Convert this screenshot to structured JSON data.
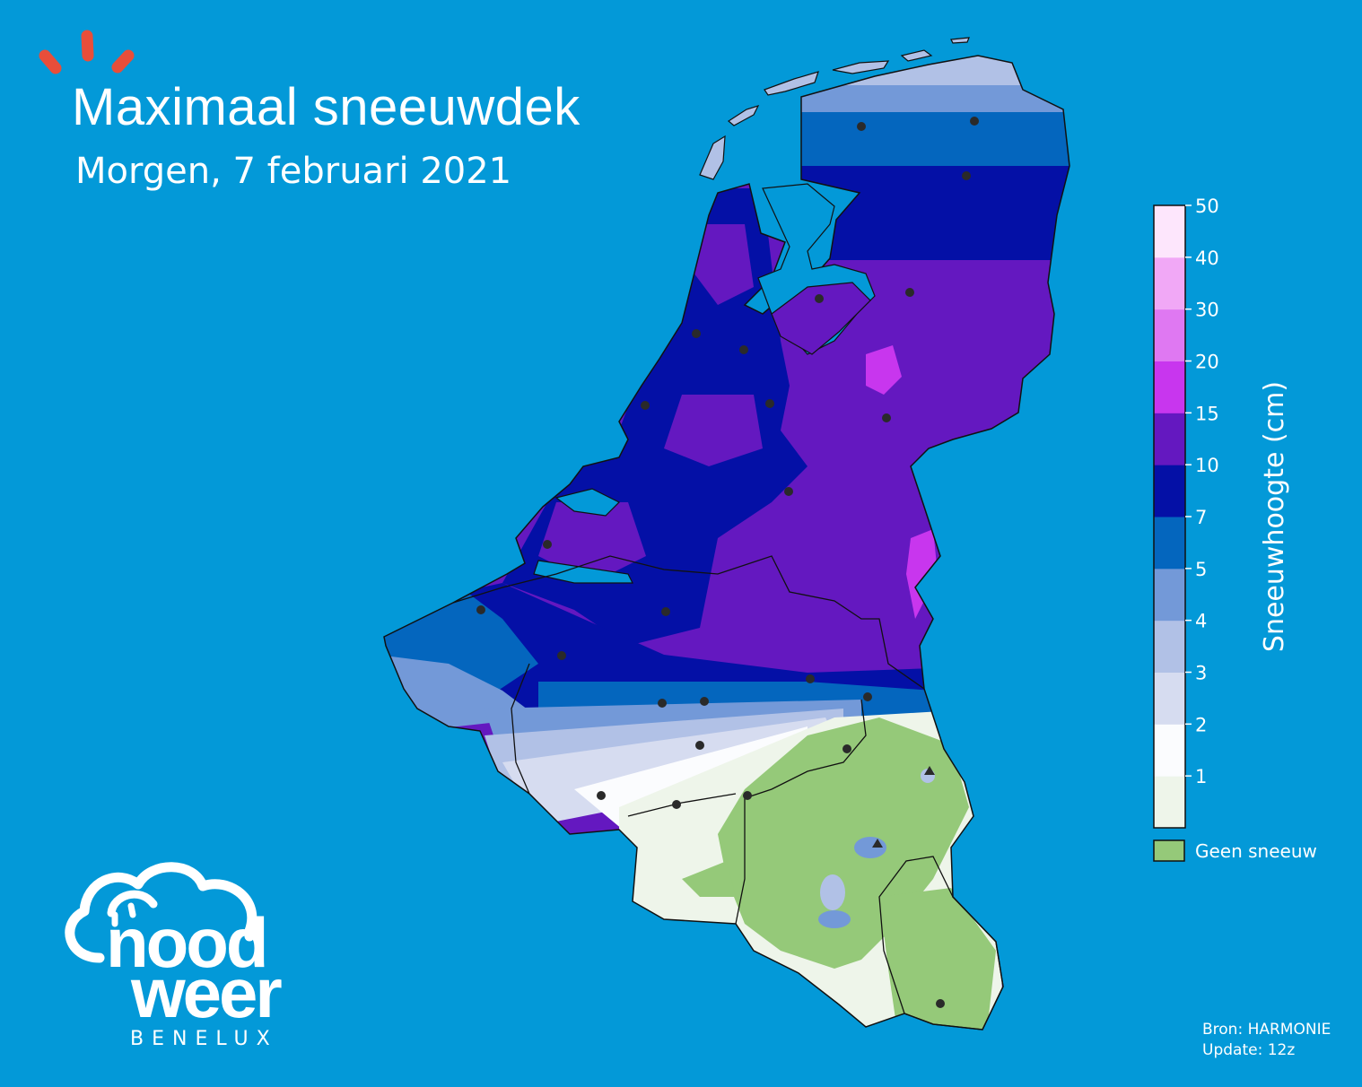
{
  "header": {
    "title": "Maximaal sneeuwdek",
    "subtitle": "Morgen, 7 februari 2021"
  },
  "colors": {
    "background": "#0399d8",
    "accent": "#e84e3a",
    "no_snow": "#95c979"
  },
  "legend": {
    "label": "Sneeuwhoogte (cm)",
    "ticks": [
      "50",
      "40",
      "30",
      "20",
      "15",
      "10",
      "7",
      "5",
      "4",
      "3",
      "2",
      "1"
    ],
    "classes": [
      {
        "range": "0-1",
        "color": "#eef5ea"
      },
      {
        "range": "1-2",
        "color": "#fbfcfe"
      },
      {
        "range": "2-3",
        "color": "#d6dcf0"
      },
      {
        "range": "3-4",
        "color": "#b1c1e6"
      },
      {
        "range": "4-5",
        "color": "#7399d8"
      },
      {
        "range": "5-7",
        "color": "#0466be"
      },
      {
        "range": "7-10",
        "color": "#0410a6"
      },
      {
        "range": "10-15",
        "color": "#6418c0"
      },
      {
        "range": "15-20",
        "color": "#c836ee"
      },
      {
        "range": "20-30",
        "color": "#df78f2"
      },
      {
        "range": "30-40",
        "color": "#f1a8f6"
      },
      {
        "range": "40-50",
        "color": "#fde6fc"
      }
    ],
    "no_snow_label": "Geen sneeuw"
  },
  "footer": {
    "source": "Bron: HARMONIE",
    "update": "Update: 12z"
  },
  "logo": {
    "line1": "nood",
    "line2": "weer",
    "line3": "BENELUX"
  }
}
